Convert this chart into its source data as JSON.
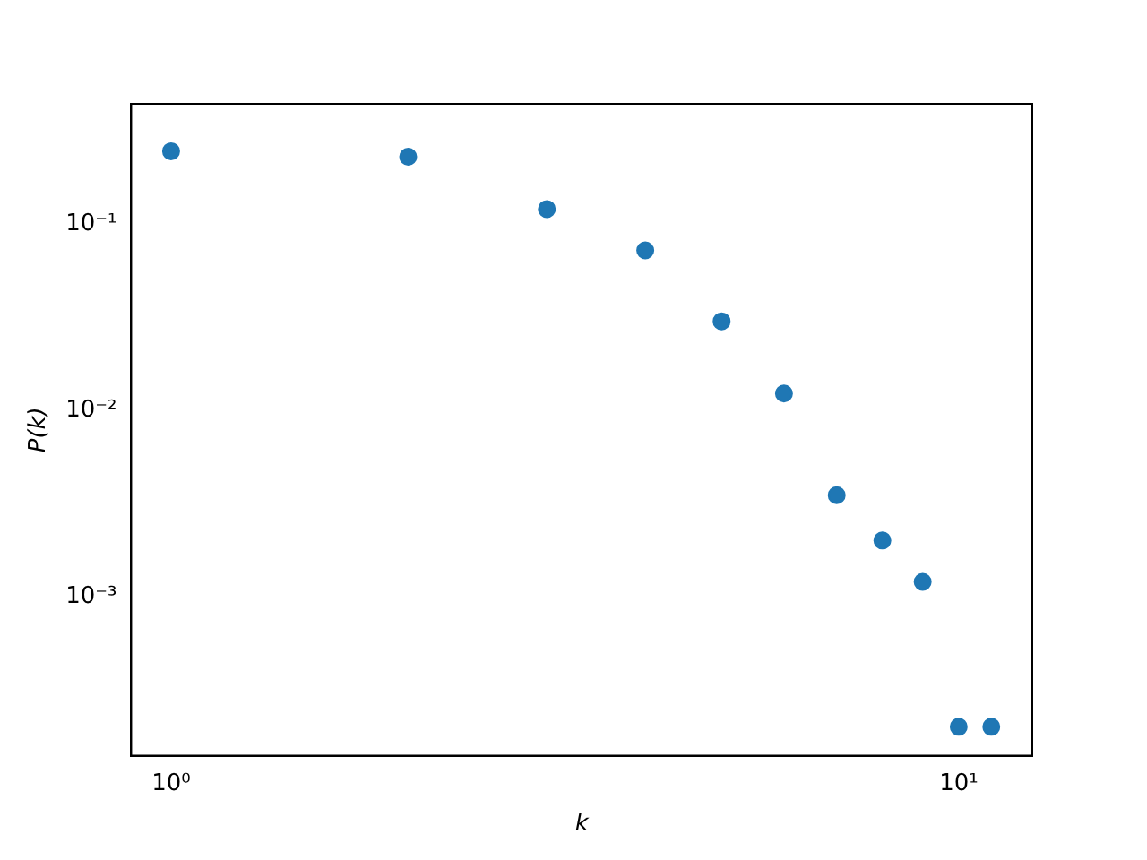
{
  "chart_data": {
    "type": "scatter",
    "xlabel": "k",
    "ylabel": "P(k)",
    "log": "xy",
    "grid": false,
    "legend": false,
    "marker": "circle",
    "x": [
      1,
      2,
      3,
      4,
      5,
      6,
      7,
      8,
      9,
      10,
      11
    ],
    "series": [
      {
        "color": "#1f77b4",
        "values": [
          0.245,
          0.229,
          0.12,
          0.072,
          0.03,
          0.0123,
          0.0035,
          0.002,
          0.0012,
          0.0002,
          0.0002
        ]
      }
    ],
    "xlim": [
      0.89,
      12.4
    ],
    "xticks": [
      {
        "value": 1,
        "label": "10⁰"
      },
      {
        "value": 10,
        "label": "10¹"
      }
    ],
    "ylim": [
      0.00014,
      0.44
    ],
    "yticks": [
      {
        "value": 0.001,
        "label": "10⁻³"
      },
      {
        "value": 0.01,
        "label": "10⁻²"
      },
      {
        "value": 0.1,
        "label": "10⁻¹"
      }
    ]
  }
}
